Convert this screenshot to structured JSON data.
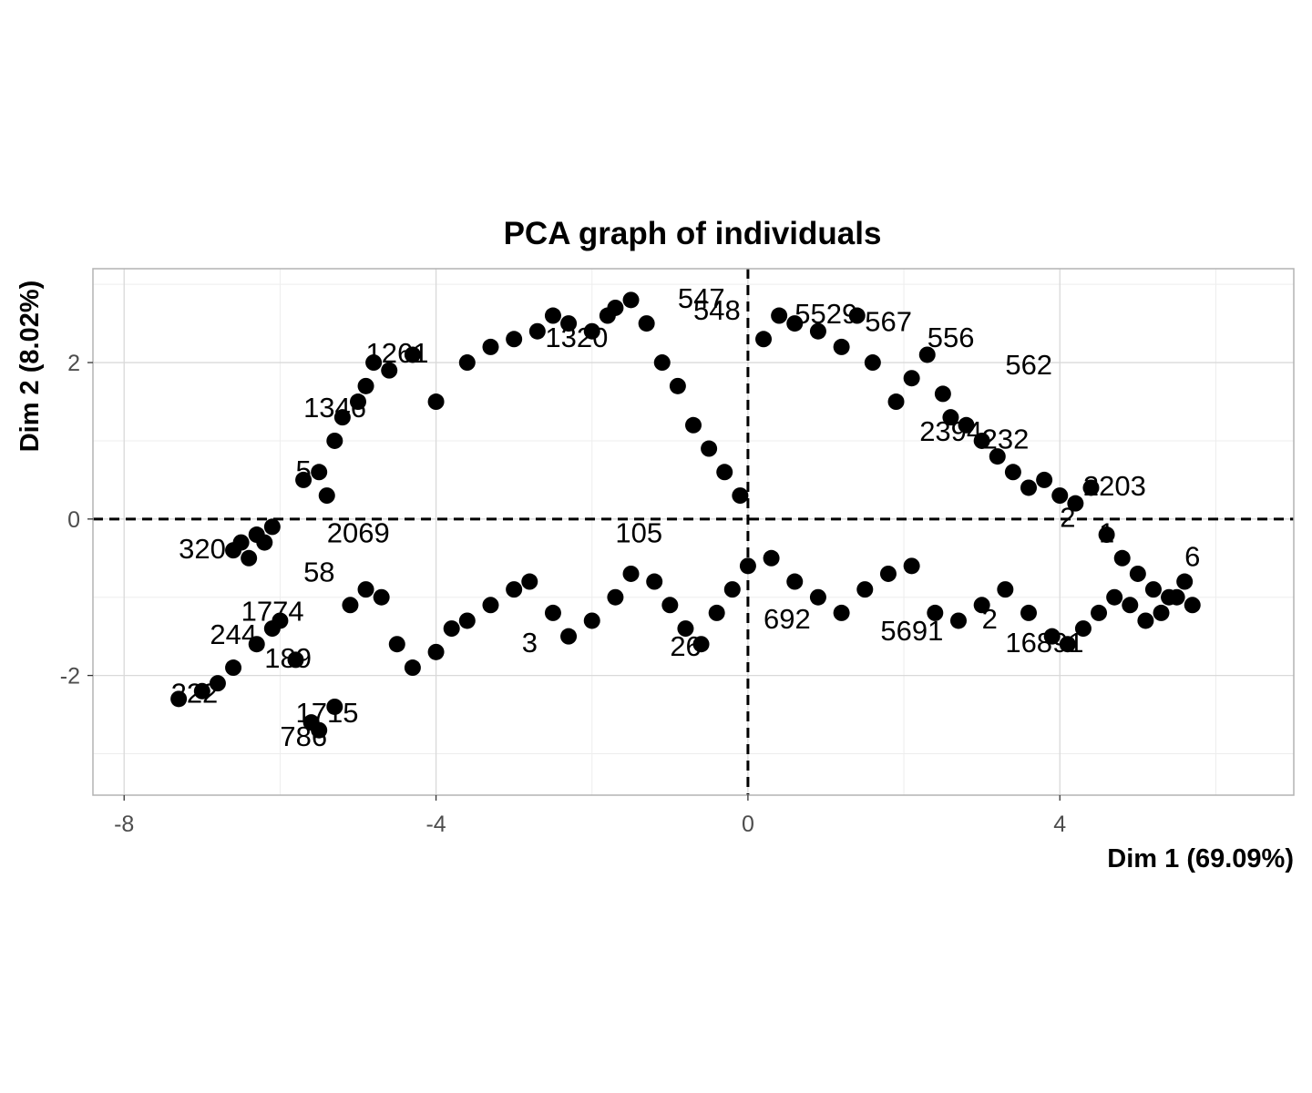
{
  "chart_data": {
    "type": "scatter",
    "title": "PCA graph of individuals",
    "xlabel": "Dim 1 (69.09%)",
    "ylabel": "Dim 2 (8.02%)",
    "xlim": [
      -8.4,
      7.0
    ],
    "ylim": [
      -3.53,
      3.2
    ],
    "x_ticks": [
      -8,
      -4,
      0,
      4
    ],
    "x_tick_labels": [
      "-8",
      "-4",
      "0",
      "4"
    ],
    "y_ticks": [
      -2,
      0,
      2
    ],
    "y_tick_labels": [
      "-2",
      "0",
      "2"
    ],
    "grid": true,
    "reference_lines": {
      "x": 0,
      "y": 0,
      "style": "dashed"
    },
    "colors": {
      "points": "#000000",
      "labels": "#000000",
      "grid_major": "#d9d9d9",
      "grid_minor": "#ededed",
      "border": "#b3b3b3",
      "tick_text": "#4d4d4d"
    },
    "series": [
      {
        "x": [
          -6.6,
          -6.5,
          -6.4,
          -6.3,
          -6.2,
          -6.1,
          -5.7,
          -5.5,
          -5.4,
          -5.3,
          -5.2,
          -5.0,
          -4.9,
          -4.8,
          -4.6,
          -4.3,
          -4.0,
          -3.6,
          -3.3,
          -3.0,
          -2.7,
          -2.5,
          -2.3,
          -2.0,
          -1.8,
          -1.7,
          -1.5,
          -1.3,
          -1.1,
          -0.9,
          -0.7,
          -0.5,
          -0.3,
          -0.1,
          0.2,
          0.4,
          0.6,
          0.9,
          1.2,
          1.4,
          1.6,
          1.9,
          2.1,
          2.3,
          2.5,
          2.6,
          2.8,
          3.0,
          3.2,
          3.4,
          3.6,
          3.8,
          4.0,
          4.2,
          4.4,
          4.6,
          4.8,
          5.0,
          5.2,
          5.4,
          5.6,
          5.7
        ],
        "y": [
          -0.4,
          -0.3,
          -0.5,
          -0.2,
          -0.3,
          -0.1,
          0.5,
          0.6,
          0.3,
          1.0,
          1.3,
          1.5,
          1.7,
          2.0,
          1.9,
          2.1,
          1.5,
          2.0,
          2.2,
          2.3,
          2.4,
          2.6,
          2.5,
          2.4,
          2.6,
          2.7,
          2.8,
          2.5,
          2.0,
          1.7,
          1.2,
          0.9,
          0.6,
          0.3,
          2.3,
          2.6,
          2.5,
          2.4,
          2.2,
          2.6,
          2.0,
          1.5,
          1.8,
          2.1,
          1.6,
          1.3,
          1.2,
          1.0,
          0.8,
          0.6,
          0.4,
          0.5,
          0.3,
          0.2,
          0.4,
          -0.2,
          -0.5,
          -0.7,
          -0.9,
          -1.0,
          -0.8,
          -1.1
        ]
      },
      {
        "x": [
          -7.3,
          -7.0,
          -6.8,
          -6.6,
          -6.3,
          -6.1,
          -6.0,
          -5.8,
          -5.6,
          -5.5,
          -5.3,
          -5.1,
          -4.9,
          -4.7,
          -4.5,
          -4.3,
          -4.0,
          -3.8,
          -3.6,
          -3.3,
          -3.0,
          -2.8,
          -2.5,
          -2.3,
          -2.0,
          -1.7,
          -1.5,
          -1.2,
          -1.0,
          -0.8,
          -0.6,
          -0.4,
          -0.2,
          0.0,
          0.3,
          0.6,
          0.9,
          1.2,
          1.5,
          1.8,
          2.1,
          2.4,
          2.7,
          3.0,
          3.3,
          3.6,
          3.9,
          4.1,
          4.3,
          4.5,
          4.7,
          4.9,
          5.1,
          5.3,
          5.5
        ],
        "y": [
          -2.3,
          -2.2,
          -2.1,
          -1.9,
          -1.6,
          -1.4,
          -1.3,
          -1.8,
          -2.6,
          -2.7,
          -2.4,
          -1.1,
          -0.9,
          -1.0,
          -1.6,
          -1.9,
          -1.7,
          -1.4,
          -1.3,
          -1.1,
          -0.9,
          -0.8,
          -1.2,
          -1.5,
          -1.3,
          -1.0,
          -0.7,
          -0.8,
          -1.1,
          -1.4,
          -1.6,
          -1.2,
          -0.9,
          -0.6,
          -0.5,
          -0.8,
          -1.0,
          -1.2,
          -0.9,
          -0.7,
          -0.6,
          -1.2,
          -1.3,
          -1.1,
          -0.9,
          -1.2,
          -1.5,
          -1.6,
          -1.4,
          -1.2,
          -1.0,
          -1.1,
          -1.3,
          -1.2,
          -1.0
        ]
      }
    ],
    "labels": [
      {
        "text": "547",
        "x": -0.9,
        "y": 2.7
      },
      {
        "text": "548",
        "x": -0.7,
        "y": 2.55
      },
      {
        "text": "5529",
        "x": 0.6,
        "y": 2.5
      },
      {
        "text": "567",
        "x": 1.5,
        "y": 2.4
      },
      {
        "text": "556",
        "x": 2.3,
        "y": 2.2
      },
      {
        "text": "562",
        "x": 3.3,
        "y": 1.85
      },
      {
        "text": "1261",
        "x": -4.9,
        "y": 2.0
      },
      {
        "text": "1346",
        "x": -5.7,
        "y": 1.3
      },
      {
        "text": "1320",
        "x": -2.6,
        "y": 2.2
      },
      {
        "text": "5",
        "x": -5.8,
        "y": 0.5
      },
      {
        "text": "2069",
        "x": -5.4,
        "y": -0.3
      },
      {
        "text": "105",
        "x": -1.7,
        "y": -0.3
      },
      {
        "text": "58",
        "x": -5.7,
        "y": -0.8
      },
      {
        "text": "320",
        "x": -7.3,
        "y": -0.5
      },
      {
        "text": "1774",
        "x": -6.5,
        "y": -1.3
      },
      {
        "text": "244",
        "x": -6.9,
        "y": -1.6
      },
      {
        "text": "189",
        "x": -6.2,
        "y": -1.9
      },
      {
        "text": "222",
        "x": -7.4,
        "y": -2.35
      },
      {
        "text": "1715",
        "x": -5.8,
        "y": -2.6
      },
      {
        "text": "786",
        "x": -6.0,
        "y": -2.9
      },
      {
        "text": "3",
        "x": -2.9,
        "y": -1.7
      },
      {
        "text": "26",
        "x": -1.0,
        "y": -1.75
      },
      {
        "text": "692",
        "x": 0.2,
        "y": -1.4
      },
      {
        "text": "5691",
        "x": 1.7,
        "y": -1.55
      },
      {
        "text": "2",
        "x": 3.0,
        "y": -1.4
      },
      {
        "text": "16891",
        "x": 3.3,
        "y": -1.7
      },
      {
        "text": "2394",
        "x": 2.2,
        "y": 1.0
      },
      {
        "text": "232",
        "x": 3.0,
        "y": 0.9
      },
      {
        "text": "2203",
        "x": 4.3,
        "y": 0.3
      },
      {
        "text": "2",
        "x": 4.0,
        "y": -0.1
      },
      {
        "text": "1",
        "x": 4.5,
        "y": -0.3
      },
      {
        "text": "6",
        "x": 5.6,
        "y": -0.6
      }
    ]
  }
}
